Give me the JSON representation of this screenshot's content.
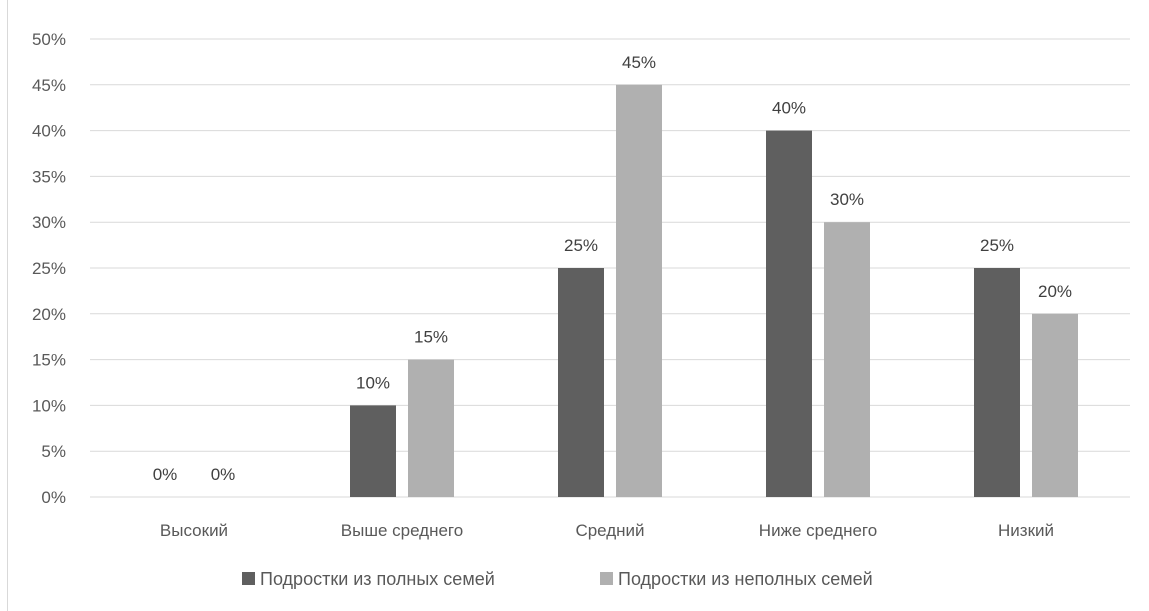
{
  "chart_data": {
    "type": "bar",
    "categories": [
      "Высокий",
      "Выше среднего",
      "Средний",
      "Ниже среднего",
      "Низкий"
    ],
    "series": [
      {
        "name": "Подростки из полных семей",
        "values": [
          0,
          10,
          25,
          40,
          25
        ],
        "color": "#5f5f5f"
      },
      {
        "name": "Подростки из неполных семей",
        "values": [
          0,
          15,
          45,
          30,
          20
        ],
        "color": "#b0b0b0"
      }
    ],
    "data_labels": [
      [
        "0%",
        "10%",
        "25%",
        "40%",
        "25%"
      ],
      [
        "0%",
        "15%",
        "45%",
        "30%",
        "20%"
      ]
    ],
    "y_ticks": [
      "0%",
      "5%",
      "10%",
      "15%",
      "20%",
      "25%",
      "30%",
      "35%",
      "40%",
      "45%",
      "50%"
    ],
    "ylim": [
      0,
      50
    ],
    "grid": true,
    "legend_position": "bottom",
    "gridline_color": "#d9d9d9"
  }
}
